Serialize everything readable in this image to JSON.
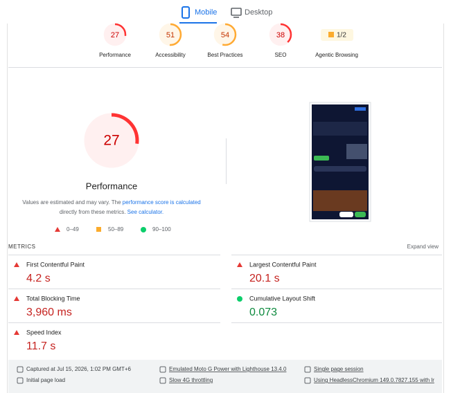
{
  "tabs": {
    "mobile": "Mobile",
    "desktop": "Desktop"
  },
  "categories": [
    {
      "score": 27,
      "label": "Performance"
    },
    {
      "score": 51,
      "label": "Accessibility"
    },
    {
      "score": 54,
      "label": "Best Practices"
    },
    {
      "score": 38,
      "label": "SEO"
    }
  ],
  "agentic": {
    "score": "1/2",
    "label": "Agentic Browsing"
  },
  "note": {
    "text1": "Values are estimated and may vary. The ",
    "link1": "performance score is calculated",
    "text2": "directly from these metrics. ",
    "link2": "See calculator."
  },
  "legend": [
    "0–49",
    "50–89",
    "90–100"
  ],
  "metrics": {
    "heading": "METRICS",
    "expand": "Expand view",
    "items": [
      {
        "name": "First Contentful Paint",
        "value": "4.2 s",
        "status": "poor"
      },
      {
        "name": "Largest Contentful Paint",
        "value": "20.1 s",
        "status": "poor"
      },
      {
        "name": "Total Blocking Time",
        "value": "3,960 ms",
        "status": "poor"
      },
      {
        "name": "Cumulative Layout Shift",
        "value": "0.073",
        "status": "good"
      },
      {
        "name": "Speed Index",
        "value": "11.7 s",
        "status": "poor"
      }
    ]
  },
  "footer": [
    "Captured at Jul 15, 2026, 1:02 PM GMT+6",
    "Emulated Moto G Power with Lighthouse 13.4.0",
    "Single page session",
    "Initial page load",
    "Slow 4G throttling",
    "Using HeadlessChromium 149.0.7827.155 with lr"
  ]
}
